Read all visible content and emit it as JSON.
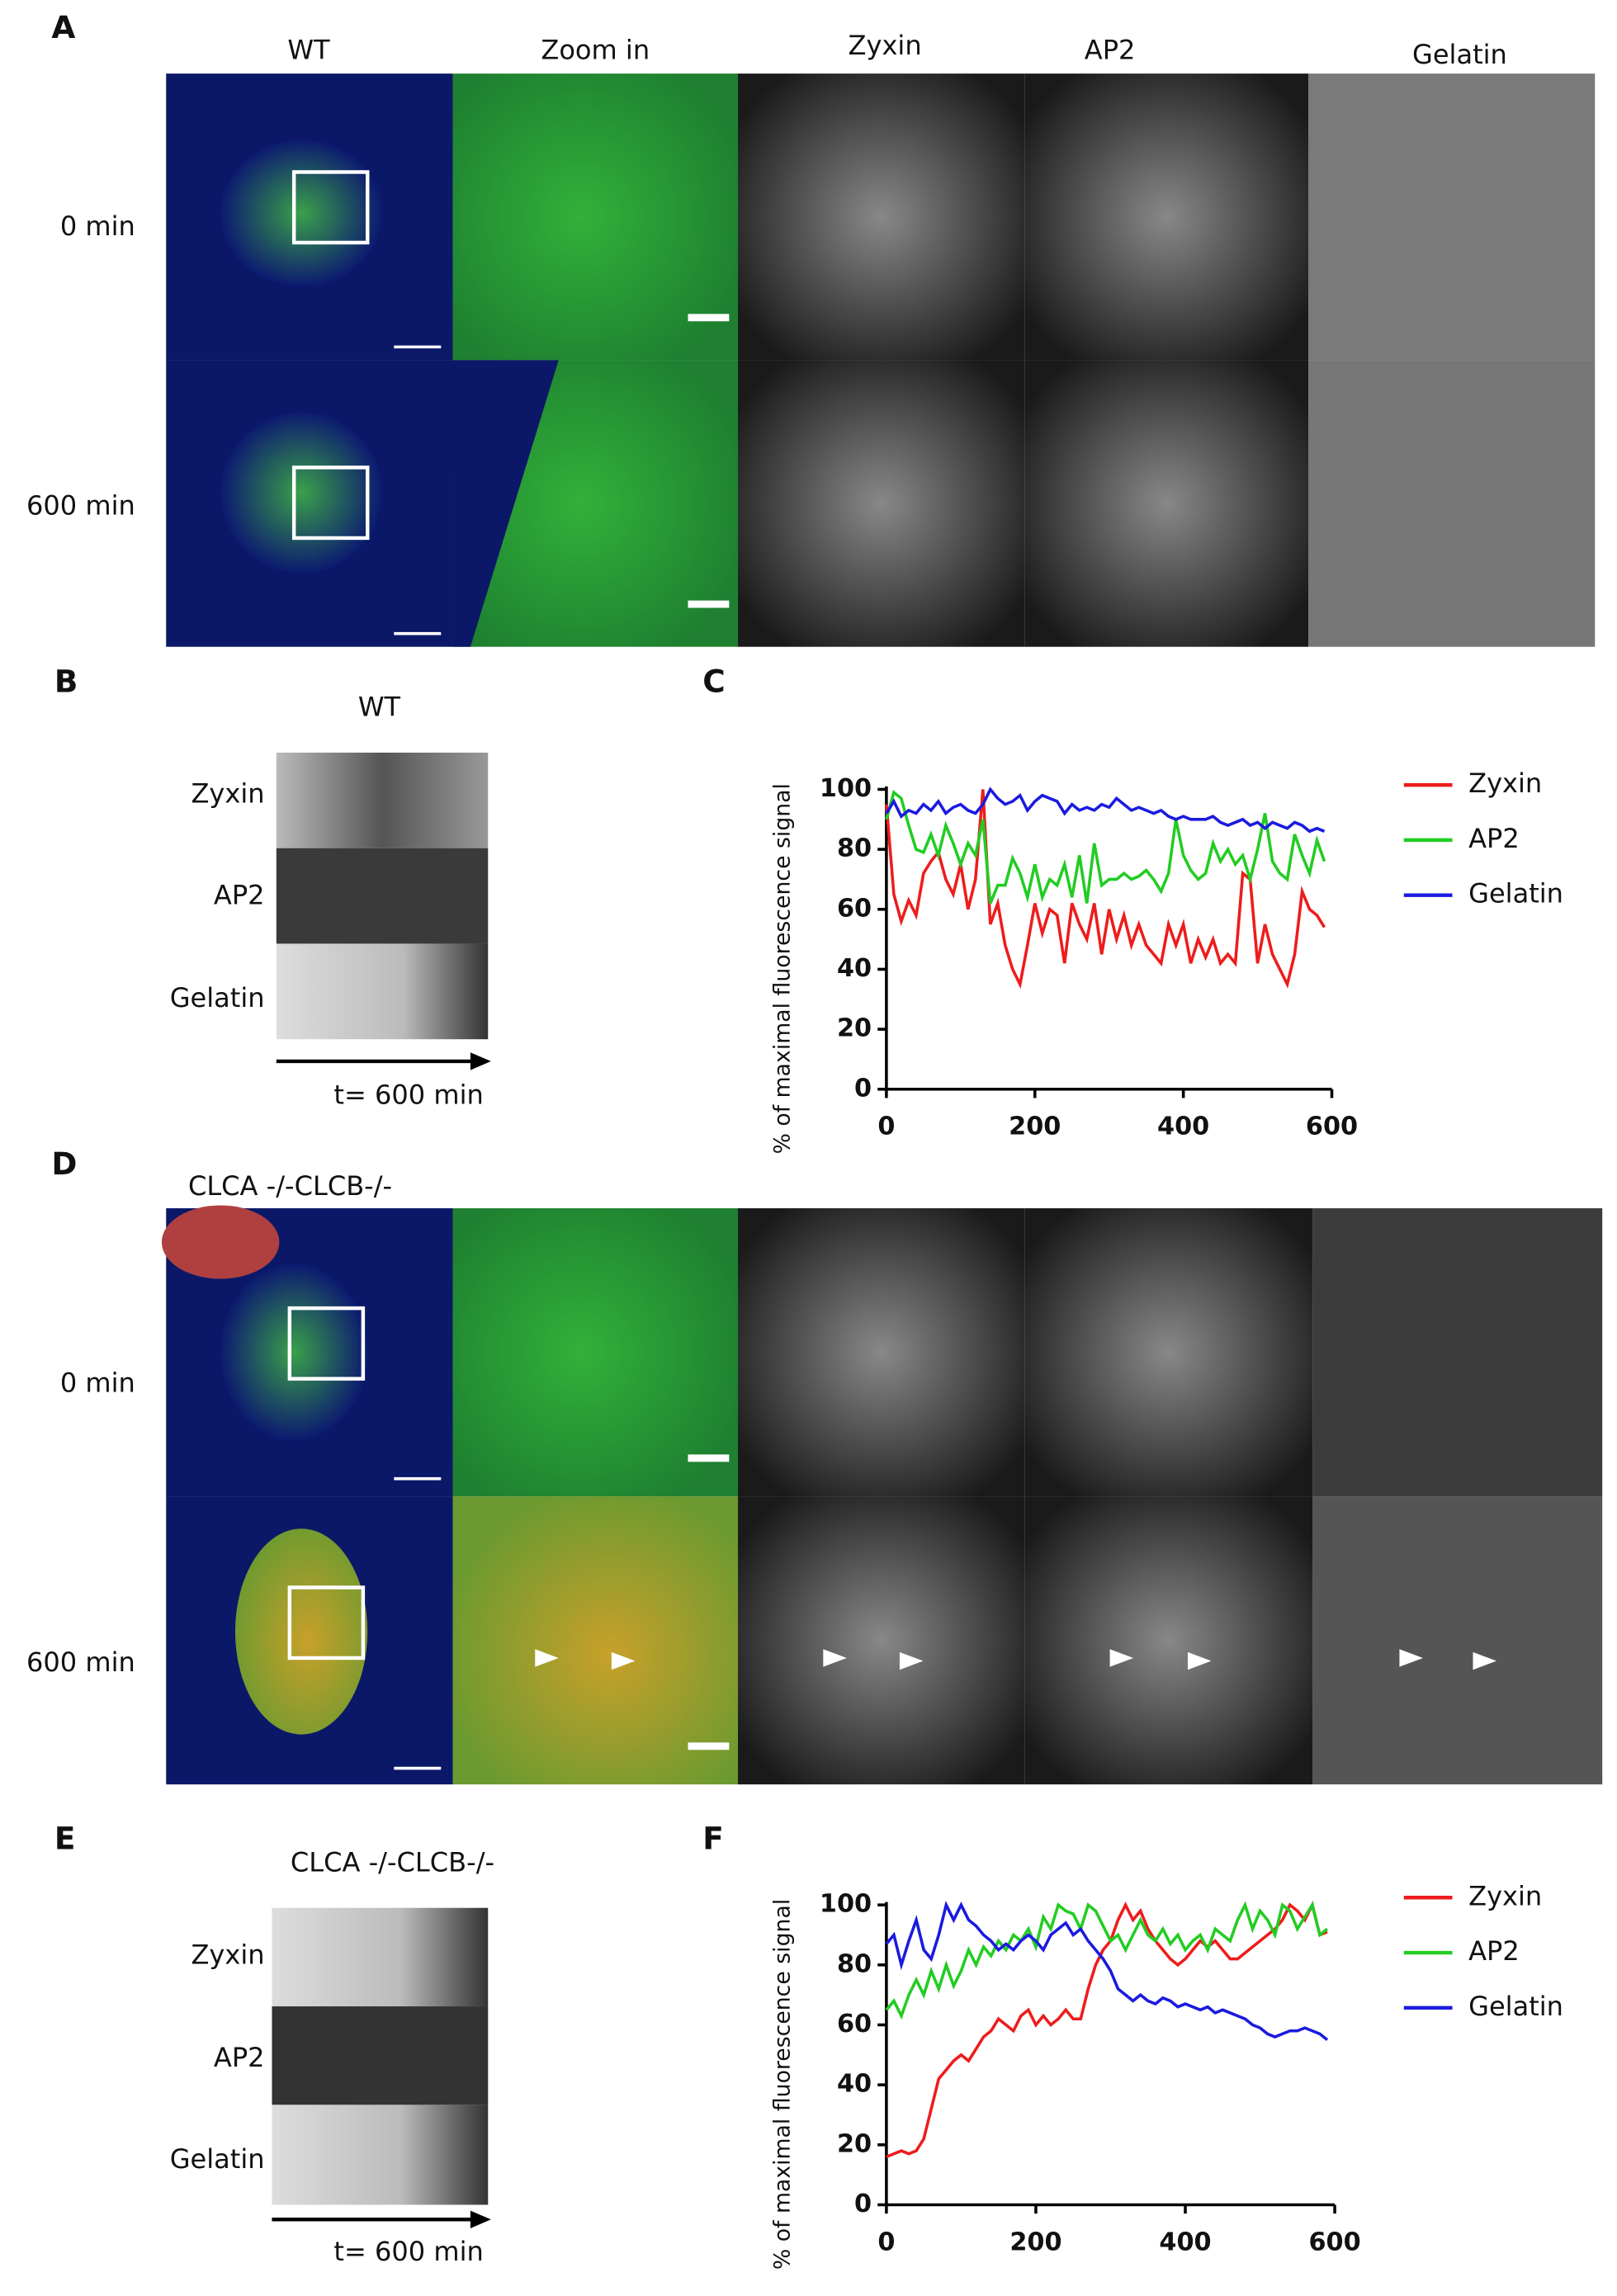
{
  "panels": {
    "A": {
      "letter": "A",
      "headers": [
        "WT",
        "Zoom in",
        "Zyxin",
        "AP2",
        "Gelatin"
      ],
      "rows": [
        "0 min",
        "600 min"
      ]
    },
    "B": {
      "letter": "B",
      "title": "WT",
      "rows": [
        "Zyxin",
        "AP2",
        "Gelatin"
      ],
      "time": "t= 600 min"
    },
    "C": {
      "letter": "C"
    },
    "D": {
      "letter": "D",
      "title": "CLCA -/-CLCB-/-",
      "rows": [
        "0 min",
        "600 min"
      ]
    },
    "E": {
      "letter": "E",
      "title": "CLCA -/-CLCB-/-",
      "rows": [
        "Zyxin",
        "AP2",
        "Gelatin"
      ],
      "time": "t= 600 min"
    },
    "F": {
      "letter": "F"
    }
  },
  "chart_data": [
    {
      "type": "line",
      "ylabel": "% of maximal fluorescence signal",
      "x": [
        0,
        10,
        20,
        30,
        40,
        50,
        60,
        70,
        80,
        90,
        100,
        110,
        120,
        130,
        140,
        150,
        160,
        170,
        180,
        190,
        200,
        210,
        220,
        230,
        240,
        250,
        260,
        270,
        280,
        290,
        300,
        310,
        320,
        330,
        340,
        350,
        360,
        370,
        380,
        390,
        400,
        410,
        420,
        430,
        440,
        450,
        460,
        470,
        480,
        490,
        500,
        510,
        520,
        530,
        540,
        550,
        560,
        570,
        580,
        590
      ],
      "xlim": [
        0,
        600
      ],
      "xticks": [
        0,
        200,
        400,
        600
      ],
      "ylim": [
        0,
        100
      ],
      "yticks": [
        0,
        20,
        40,
        60,
        80,
        100
      ],
      "series": [
        {
          "name": "Zyxin",
          "color": "#ee1c1c",
          "values": [
            95,
            65,
            56,
            63,
            58,
            72,
            76,
            79,
            70,
            65,
            75,
            60,
            70,
            100,
            55,
            62,
            48,
            40,
            35,
            48,
            62,
            52,
            60,
            58,
            42,
            62,
            55,
            50,
            62,
            45,
            60,
            50,
            58,
            48,
            55,
            48,
            45,
            42,
            55,
            48,
            55,
            42,
            50,
            44,
            50,
            42,
            45,
            42,
            72,
            70,
            42,
            55,
            45,
            40,
            35,
            45,
            66,
            60,
            58,
            54
          ]
        },
        {
          "name": "AP2",
          "color": "#22cc22",
          "values": [
            90,
            99,
            97,
            88,
            80,
            79,
            85,
            78,
            88,
            82,
            75,
            82,
            78,
            90,
            62,
            68,
            68,
            77,
            72,
            64,
            75,
            64,
            70,
            68,
            75,
            64,
            78,
            62,
            82,
            68,
            70,
            70,
            72,
            70,
            71,
            73,
            70,
            66,
            72,
            90,
            78,
            73,
            70,
            72,
            82,
            76,
            80,
            75,
            78,
            70,
            80,
            92,
            76,
            72,
            70,
            85,
            78,
            72,
            83,
            76
          ]
        },
        {
          "name": "Gelatin",
          "color": "#1a1ae0",
          "values": [
            92,
            96,
            91,
            93,
            92,
            95,
            93,
            96,
            92,
            94,
            95,
            93,
            92,
            95,
            100,
            97,
            95,
            96,
            98,
            93,
            96,
            98,
            97,
            96,
            92,
            95,
            93,
            94,
            93,
            95,
            94,
            97,
            95,
            93,
            94,
            93,
            92,
            93,
            91,
            90,
            91,
            90,
            90,
            90,
            91,
            89,
            88,
            89,
            90,
            88,
            89,
            87,
            89,
            88,
            87,
            89,
            88,
            86,
            87,
            86
          ]
        }
      ]
    },
    {
      "type": "line",
      "ylabel": "% of maximal fluorescence signal",
      "x": [
        0,
        10,
        20,
        30,
        40,
        50,
        60,
        70,
        80,
        90,
        100,
        110,
        120,
        130,
        140,
        150,
        160,
        170,
        180,
        190,
        200,
        210,
        220,
        230,
        240,
        250,
        260,
        270,
        280,
        290,
        300,
        310,
        320,
        330,
        340,
        350,
        360,
        370,
        380,
        390,
        400,
        410,
        420,
        430,
        440,
        450,
        460,
        470,
        480,
        490,
        500,
        510,
        520,
        530,
        540,
        550,
        560,
        570,
        580,
        590
      ],
      "xlim": [
        0,
        600
      ],
      "xticks": [
        0,
        200,
        400,
        600
      ],
      "ylim": [
        0,
        100
      ],
      "yticks": [
        0,
        20,
        40,
        60,
        80,
        100
      ],
      "series": [
        {
          "name": "Zyxin",
          "color": "#ee1c1c",
          "values": [
            16,
            17,
            18,
            17,
            18,
            22,
            32,
            42,
            45,
            48,
            50,
            48,
            52,
            56,
            58,
            62,
            60,
            58,
            63,
            65,
            60,
            63,
            60,
            62,
            65,
            62,
            62,
            72,
            80,
            85,
            88,
            95,
            100,
            95,
            98,
            92,
            88,
            85,
            82,
            80,
            82,
            85,
            88,
            86,
            88,
            85,
            82,
            82,
            84,
            86,
            88,
            90,
            92,
            95,
            100,
            98,
            95,
            100,
            90,
            91
          ]
        },
        {
          "name": "AP2",
          "color": "#22cc22",
          "values": [
            65,
            68,
            63,
            70,
            75,
            70,
            78,
            72,
            80,
            73,
            78,
            85,
            80,
            86,
            83,
            88,
            85,
            90,
            88,
            92,
            86,
            96,
            92,
            100,
            98,
            97,
            92,
            100,
            98,
            93,
            88,
            90,
            85,
            90,
            95,
            90,
            88,
            92,
            87,
            90,
            85,
            88,
            90,
            85,
            92,
            90,
            88,
            95,
            100,
            92,
            98,
            95,
            90,
            100,
            98,
            92,
            96,
            100,
            90,
            92
          ]
        },
        {
          "name": "Gelatin",
          "color": "#1a1ae0",
          "values": [
            87,
            90,
            80,
            88,
            95,
            85,
            82,
            90,
            100,
            95,
            100,
            95,
            93,
            90,
            88,
            85,
            87,
            85,
            88,
            90,
            88,
            85,
            90,
            92,
            94,
            90,
            92,
            88,
            85,
            82,
            78,
            72,
            70,
            68,
            70,
            68,
            67,
            69,
            68,
            66,
            67,
            66,
            65,
            66,
            64,
            65,
            64,
            63,
            62,
            60,
            59,
            57,
            56,
            57,
            58,
            58,
            59,
            58,
            57,
            55
          ]
        }
      ]
    }
  ]
}
